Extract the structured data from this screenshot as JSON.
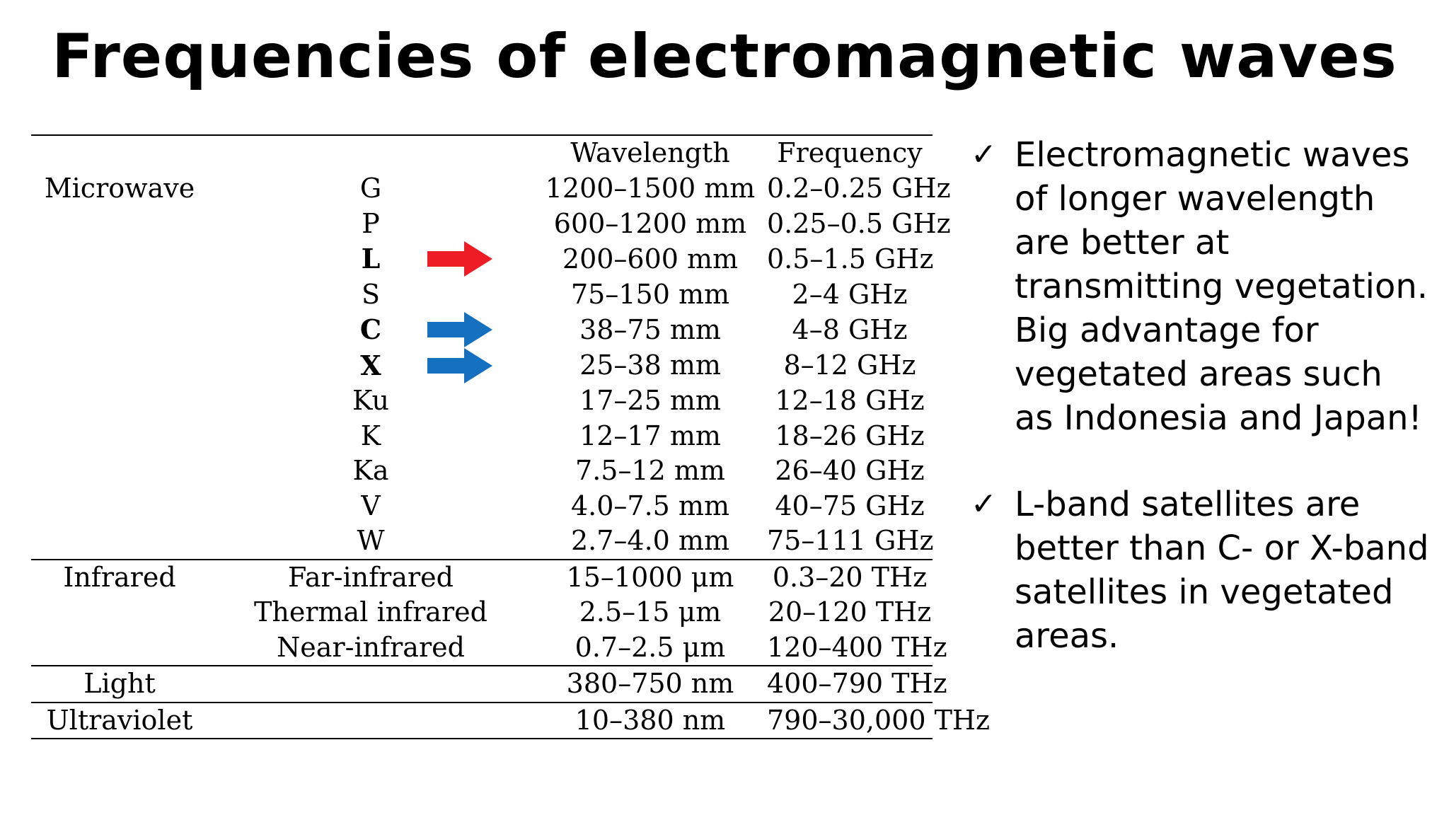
{
  "title": "Frequencies of electromagnetic waves",
  "table": {
    "headers": [
      "",
      "",
      "Wavelength",
      "Frequency"
    ],
    "rows": [
      {
        "region": "Microwave",
        "band": "G",
        "wavelength": "1200–1500 mm",
        "frequency": "0.2–0.25 GHz"
      },
      {
        "region": "",
        "band": "P",
        "wavelength": "600–1200 mm",
        "frequency": "0.25–0.5 GHz"
      },
      {
        "region": "",
        "band": "L",
        "wavelength": "200–600 mm",
        "frequency": "0.5–1.5 GHz",
        "bold": true,
        "arrow": "red"
      },
      {
        "region": "",
        "band": "S",
        "wavelength": "75–150 mm",
        "frequency": "2–4 GHz"
      },
      {
        "region": "",
        "band": "C",
        "wavelength": "38–75 mm",
        "frequency": "4–8 GHz",
        "bold": true,
        "arrow": "blue"
      },
      {
        "region": "",
        "band": "X",
        "wavelength": "25–38 mm",
        "frequency": "8–12 GHz",
        "bold": true,
        "arrow": "blue"
      },
      {
        "region": "",
        "band": "Ku",
        "wavelength": "17–25 mm",
        "frequency": "12–18 GHz"
      },
      {
        "region": "",
        "band": "K",
        "wavelength": "12–17 mm",
        "frequency": "18–26 GHz"
      },
      {
        "region": "",
        "band": "Ka",
        "wavelength": "7.5–12 mm",
        "frequency": "26–40 GHz"
      },
      {
        "region": "",
        "band": "V",
        "wavelength": "4.0–7.5 mm",
        "frequency": "40–75 GHz"
      },
      {
        "region": "",
        "band": "W",
        "wavelength": "2.7–4.0 mm",
        "frequency": "75–111 GHz"
      },
      {
        "region": "Infrared",
        "band": "Far-infrared",
        "wavelength": "15–1000 μm",
        "frequency": "0.3–20 THz",
        "rule_top": true
      },
      {
        "region": "",
        "band": "Thermal infrared",
        "wavelength": "2.5–15 μm",
        "frequency": "20–120 THz"
      },
      {
        "region": "",
        "band": "Near-infrared",
        "wavelength": "0.7–2.5 μm",
        "frequency": "120–400 THz"
      },
      {
        "region": "Light",
        "band": "",
        "wavelength": "380–750 nm",
        "frequency": "400–790 THz",
        "rule_top": true
      },
      {
        "region": "Ultraviolet",
        "band": "",
        "wavelength": "10–380 nm",
        "frequency": "790–30,000 THz",
        "rule_top": true,
        "rule_bottom": true
      }
    ]
  },
  "colors": {
    "red_arrow": "#ee1c24",
    "blue_arrow": "#1570c0"
  },
  "bullets": [
    {
      "icon": "check-icon",
      "glyph": "✓",
      "text": "Electromagnetic waves of longer wavelength are better at transmitting vegetation. Big advantage for vegetated areas such as Indonesia and Japan!"
    },
    {
      "icon": "check-icon",
      "glyph": "✓",
      "text": "L-band satellites are better than C- or X-band satellites in vegetated areas."
    }
  ]
}
